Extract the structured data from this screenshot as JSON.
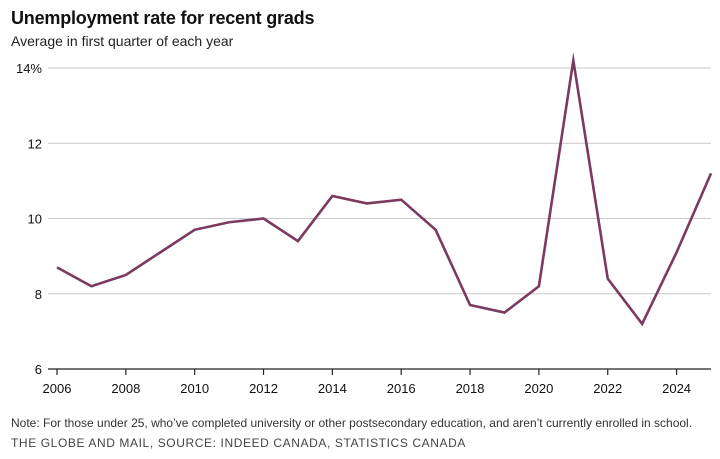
{
  "title": "Unemployment rate for recent grads",
  "subtitle": "Average in first quarter of each year",
  "note": "Note: For those under 25, who’ve completed university or other postsecondary education, and aren’t currently enrolled in school.",
  "source": "THE GLOBE AND MAIL, SOURCE: INDEED CANADA, STATISTICS CANADA",
  "line_color": "#7b3a5e",
  "chart_data": {
    "type": "line",
    "title": "Unemployment rate for recent grads",
    "subtitle": "Average in first quarter of each year",
    "xlabel": "",
    "ylabel": "",
    "xlim": [
      2006,
      2025
    ],
    "ylim": [
      6,
      14
    ],
    "y_ticks": [
      6,
      8,
      10,
      12,
      14
    ],
    "y_tick_labels": [
      "6",
      "8",
      "10",
      "12",
      "14%"
    ],
    "x_ticks": [
      2006,
      2008,
      2010,
      2012,
      2014,
      2016,
      2018,
      2020,
      2022,
      2024
    ],
    "x_tick_labels": [
      "2006",
      "2008",
      "2010",
      "2012",
      "2014",
      "2016",
      "2018",
      "2020",
      "2022",
      "2024"
    ],
    "grid": "horizontal",
    "x": [
      2006,
      2007,
      2008,
      2009,
      2010,
      2011,
      2012,
      2013,
      2014,
      2015,
      2016,
      2017,
      2018,
      2019,
      2020,
      2021,
      2022,
      2023,
      2024,
      2025
    ],
    "series": [
      {
        "values": [
          8.7,
          8.2,
          8.5,
          9.1,
          9.7,
          9.9,
          10.0,
          9.4,
          10.6,
          10.4,
          10.5,
          9.7,
          7.7,
          7.5,
          8.2,
          14.2,
          8.4,
          7.2,
          9.1,
          11.2
        ]
      }
    ]
  }
}
